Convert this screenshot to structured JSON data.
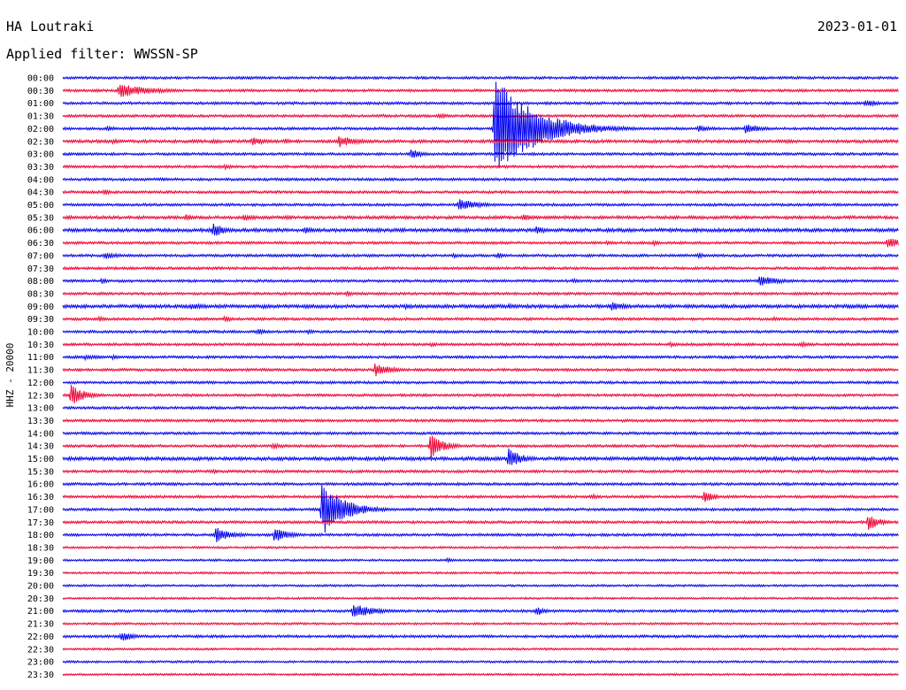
{
  "header": {
    "station": "HA Loutraki",
    "date": "2023-01-01",
    "filter": "Applied filter: WWSSN-SP"
  },
  "chart_data": {
    "type": "line",
    "ylabel": "HHZ - 20000",
    "row_labels": [
      "00:00",
      "00:30",
      "01:00",
      "01:30",
      "02:00",
      "02:30",
      "03:00",
      "03:30",
      "04:00",
      "04:30",
      "05:00",
      "05:30",
      "06:00",
      "06:30",
      "07:00",
      "07:30",
      "08:00",
      "08:30",
      "09:00",
      "09:30",
      "10:00",
      "10:30",
      "11:00",
      "11:30",
      "12:00",
      "12:30",
      "13:00",
      "13:30",
      "14:00",
      "14:30",
      "15:00",
      "15:30",
      "16:00",
      "16:30",
      "17:00",
      "17:30",
      "18:00",
      "18:30",
      "19:00",
      "19:30",
      "20:00",
      "20:30",
      "21:00",
      "21:30",
      "22:00",
      "22:30",
      "23:00",
      "23:30"
    ],
    "x_minutes_per_row": 30,
    "trace_colors": [
      "#0000ee",
      "#ee0033"
    ],
    "baseline_noise": [
      1.5,
      1.5,
      1.5,
      1.5,
      1.5,
      1.8,
      1.5,
      1.5,
      1.5,
      1.5,
      1.5,
      1.8,
      2,
      1.5,
      1.5,
      1.5,
      1.5,
      1.5,
      2,
      1.5,
      1.5,
      1.5,
      1.5,
      1.5,
      1.5,
      1.5,
      1.5,
      1.5,
      1.5,
      1.5,
      2,
      1.5,
      1.5,
      1.5,
      1.5,
      1.5,
      1.5,
      1.2,
      1.2,
      1.2,
      1.2,
      1.2,
      1.5,
      1.2,
      1.5,
      1.2,
      1.2,
      1.2
    ],
    "events": [
      {
        "row": 1,
        "minute": 2.0,
        "amplitude": 8,
        "duration": 1.2
      },
      {
        "row": 2,
        "minute": 28.8,
        "amplitude": 4,
        "duration": 0.6
      },
      {
        "row": 3,
        "minute": 11.5,
        "amplitude": 2,
        "duration": 0.2
      },
      {
        "row": 3,
        "minute": 13.5,
        "amplitude": 3,
        "duration": 0.5
      },
      {
        "row": 4,
        "minute": 1.6,
        "amplitude": 3,
        "duration": 0.4
      },
      {
        "row": 4,
        "minute": 4.5,
        "amplitude": 2,
        "duration": 0.5
      },
      {
        "row": 4,
        "minute": 5.3,
        "amplitude": 2,
        "duration": 0.4
      },
      {
        "row": 4,
        "minute": 15.5,
        "amplitude": 60,
        "duration": 1.4
      },
      {
        "row": 4,
        "minute": 19.8,
        "amplitude": 3,
        "duration": 0.5
      },
      {
        "row": 4,
        "minute": 22.8,
        "amplitude": 4,
        "duration": 0.6
      },
      {
        "row": 4,
        "minute": 24.5,
        "amplitude": 6,
        "duration": 0.6
      },
      {
        "row": 5,
        "minute": 1.8,
        "amplitude": 3,
        "duration": 0.4
      },
      {
        "row": 5,
        "minute": 5.4,
        "amplitude": 3,
        "duration": 0.3
      },
      {
        "row": 5,
        "minute": 6.8,
        "amplitude": 5,
        "duration": 0.5
      },
      {
        "row": 5,
        "minute": 8.0,
        "amplitude": 3,
        "duration": 0.3
      },
      {
        "row": 5,
        "minute": 9.9,
        "amplitude": 7,
        "duration": 0.7
      },
      {
        "row": 5,
        "minute": 26.0,
        "amplitude": 2,
        "duration": 0.4
      },
      {
        "row": 6,
        "minute": 12.5,
        "amplitude": 6,
        "duration": 0.4
      },
      {
        "row": 7,
        "minute": 5.8,
        "amplitude": 3,
        "duration": 0.5
      },
      {
        "row": 7,
        "minute": 10.3,
        "amplitude": 2,
        "duration": 0.3
      },
      {
        "row": 9,
        "minute": 1.5,
        "amplitude": 5,
        "duration": 0.2
      },
      {
        "row": 10,
        "minute": 14.2,
        "amplitude": 7,
        "duration": 0.8
      },
      {
        "row": 11,
        "minute": 4.4,
        "amplitude": 4,
        "duration": 0.3
      },
      {
        "row": 11,
        "minute": 6.5,
        "amplitude": 4,
        "duration": 0.6
      },
      {
        "row": 11,
        "minute": 8.0,
        "amplitude": 3,
        "duration": 0.4
      },
      {
        "row": 11,
        "minute": 16.5,
        "amplitude": 4,
        "duration": 0.5
      },
      {
        "row": 12,
        "minute": 5.4,
        "amplitude": 9,
        "duration": 0.4
      },
      {
        "row": 12,
        "minute": 8.7,
        "amplitude": 4,
        "duration": 0.4
      },
      {
        "row": 12,
        "minute": 17.0,
        "amplitude": 6,
        "duration": 0.3
      },
      {
        "row": 13,
        "minute": 19.5,
        "amplitude": 3,
        "duration": 0.3
      },
      {
        "row": 13,
        "minute": 21.2,
        "amplitude": 3,
        "duration": 0.3
      },
      {
        "row": 13,
        "minute": 29.6,
        "amplitude": 7,
        "duration": 0.5
      },
      {
        "row": 14,
        "minute": 1.5,
        "amplitude": 4,
        "duration": 0.6
      },
      {
        "row": 14,
        "minute": 14.0,
        "amplitude": 3,
        "duration": 0.3
      },
      {
        "row": 14,
        "minute": 15.6,
        "amplitude": 4,
        "duration": 0.3
      },
      {
        "row": 14,
        "minute": 22.8,
        "amplitude": 3,
        "duration": 0.4
      },
      {
        "row": 16,
        "minute": 1.4,
        "amplitude": 4,
        "duration": 0.2
      },
      {
        "row": 16,
        "minute": 18.3,
        "amplitude": 3,
        "duration": 0.2
      },
      {
        "row": 16,
        "minute": 25.0,
        "amplitude": 6,
        "duration": 0.8
      },
      {
        "row": 17,
        "minute": 10.2,
        "amplitude": 3,
        "duration": 0.4
      },
      {
        "row": 18,
        "minute": 4.6,
        "amplitude": 4,
        "duration": 0.6
      },
      {
        "row": 18,
        "minute": 7.2,
        "amplitude": 3,
        "duration": 0.5
      },
      {
        "row": 18,
        "minute": 8.7,
        "amplitude": 3,
        "duration": 0.3
      },
      {
        "row": 18,
        "minute": 12.3,
        "amplitude": 3,
        "duration": 0.3
      },
      {
        "row": 18,
        "minute": 16.0,
        "amplitude": 3,
        "duration": 0.3
      },
      {
        "row": 18,
        "minute": 19.7,
        "amplitude": 5,
        "duration": 0.6
      },
      {
        "row": 18,
        "minute": 28.2,
        "amplitude": 3,
        "duration": 0.3
      },
      {
        "row": 19,
        "minute": 1.3,
        "amplitude": 3,
        "duration": 0.3
      },
      {
        "row": 19,
        "minute": 5.8,
        "amplitude": 4,
        "duration": 0.3
      },
      {
        "row": 19,
        "minute": 25.5,
        "amplitude": 3,
        "duration": 0.3
      },
      {
        "row": 20,
        "minute": 7.0,
        "amplitude": 4,
        "duration": 0.3
      },
      {
        "row": 20,
        "minute": 8.8,
        "amplitude": 3,
        "duration": 0.3
      },
      {
        "row": 21,
        "minute": 13.2,
        "amplitude": 3,
        "duration": 0.3
      },
      {
        "row": 21,
        "minute": 21.8,
        "amplitude": 3,
        "duration": 0.3
      },
      {
        "row": 21,
        "minute": 26.5,
        "amplitude": 3,
        "duration": 0.4
      },
      {
        "row": 22,
        "minute": 0.8,
        "amplitude": 3,
        "duration": 0.7
      },
      {
        "row": 22,
        "minute": 1.8,
        "amplitude": 3,
        "duration": 0.3
      },
      {
        "row": 23,
        "minute": 11.2,
        "amplitude": 8,
        "duration": 0.6
      },
      {
        "row": 25,
        "minute": 0.3,
        "amplitude": 12,
        "duration": 0.5
      },
      {
        "row": 29,
        "minute": 13.2,
        "amplitude": 14,
        "duration": 0.5
      },
      {
        "row": 29,
        "minute": 7.5,
        "amplitude": 3,
        "duration": 0.8
      },
      {
        "row": 30,
        "minute": 16.0,
        "amplitude": 12,
        "duration": 0.5
      },
      {
        "row": 31,
        "minute": 5.4,
        "amplitude": 3,
        "duration": 0.3
      },
      {
        "row": 33,
        "minute": 19.0,
        "amplitude": 3,
        "duration": 0.3
      },
      {
        "row": 33,
        "minute": 23.0,
        "amplitude": 7,
        "duration": 0.4
      },
      {
        "row": 34,
        "minute": 9.3,
        "amplitude": 30,
        "duration": 0.8
      },
      {
        "row": 35,
        "minute": 28.9,
        "amplitude": 10,
        "duration": 0.4
      },
      {
        "row": 36,
        "minute": 5.5,
        "amplitude": 9,
        "duration": 0.6
      },
      {
        "row": 36,
        "minute": 7.6,
        "amplitude": 9,
        "duration": 0.5
      },
      {
        "row": 38,
        "minute": 13.8,
        "amplitude": 3,
        "duration": 0.2
      },
      {
        "row": 42,
        "minute": 10.4,
        "amplitude": 9,
        "duration": 0.8
      },
      {
        "row": 42,
        "minute": 17.0,
        "amplitude": 6,
        "duration": 0.3
      },
      {
        "row": 44,
        "minute": 2.1,
        "amplitude": 6,
        "duration": 0.5
      }
    ]
  }
}
